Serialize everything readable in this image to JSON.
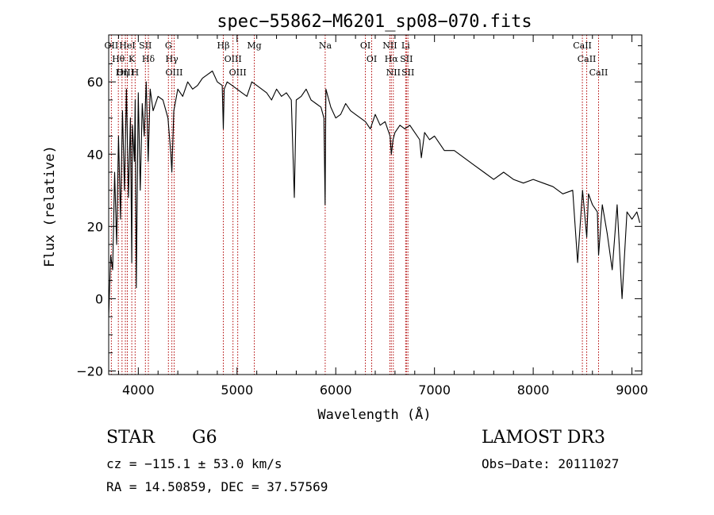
{
  "chart_data": {
    "type": "line",
    "title": "spec−55862−M6201_sp08−070.fits",
    "xlabel": "Wavelength (Å)",
    "ylabel": "Flux (relative)",
    "xlim": [
      3700,
      9100
    ],
    "ylim": [
      -21,
      73
    ],
    "xticks": [
      {
        "value": 4000,
        "label": "4000"
      },
      {
        "value": 5000,
        "label": "5000"
      },
      {
        "value": 6000,
        "label": "6000"
      },
      {
        "value": 7000,
        "label": "7000"
      },
      {
        "value": 8000,
        "label": "8000"
      },
      {
        "value": 9000,
        "label": "9000"
      }
    ],
    "yticks": [
      {
        "value": -20,
        "label": "−20"
      },
      {
        "value": 0,
        "label": "0"
      },
      {
        "value": 20,
        "label": "20"
      },
      {
        "value": 40,
        "label": "40"
      },
      {
        "value": 60,
        "label": "60"
      }
    ],
    "series": [
      {
        "name": "flux",
        "x": [
          3700,
          3720,
          3740,
          3760,
          3780,
          3800,
          3820,
          3840,
          3860,
          3880,
          3900,
          3920,
          3934,
          3940,
          3960,
          3968,
          3980,
          4000,
          4020,
          4040,
          4060,
          4080,
          4100,
          4120,
          4150,
          4200,
          4250,
          4300,
          4330,
          4340,
          4360,
          4400,
          4450,
          4500,
          4550,
          4600,
          4650,
          4700,
          4750,
          4800,
          4850,
          4861,
          4870,
          4900,
          4950,
          5000,
          5050,
          5100,
          5150,
          5200,
          5250,
          5300,
          5350,
          5400,
          5450,
          5500,
          5550,
          5580,
          5600,
          5650,
          5700,
          5750,
          5800,
          5850,
          5880,
          5892,
          5900,
          5950,
          6000,
          6050,
          6100,
          6150,
          6200,
          6250,
          6300,
          6350,
          6400,
          6450,
          6500,
          6550,
          6563,
          6580,
          6600,
          6650,
          6700,
          6750,
          6800,
          6850,
          6867,
          6900,
          6950,
          7000,
          7050,
          7100,
          7150,
          7200,
          7300,
          7400,
          7500,
          7600,
          7700,
          7800,
          7900,
          8000,
          8100,
          8200,
          8300,
          8400,
          8450,
          8500,
          8542,
          8560,
          8600,
          8650,
          8662,
          8700,
          8750,
          8800,
          8850,
          8900,
          8950,
          9000,
          9050,
          9080
        ],
        "y": [
          -5,
          12,
          8,
          35,
          15,
          45,
          22,
          52,
          30,
          58,
          28,
          50,
          10,
          48,
          38,
          55,
          3,
          57,
          30,
          54,
          45,
          60,
          38,
          58,
          52,
          56,
          55,
          50,
          40,
          35,
          52,
          58,
          56,
          60,
          58,
          59,
          61,
          62,
          63,
          60,
          59,
          47,
          58,
          60,
          59,
          58,
          57,
          56,
          60,
          59,
          58,
          57,
          55,
          58,
          56,
          57,
          55,
          28,
          55,
          56,
          58,
          55,
          54,
          53,
          50,
          26,
          58,
          53,
          50,
          51,
          54,
          52,
          51,
          50,
          49,
          47,
          51,
          48,
          49,
          45,
          40,
          44,
          46,
          48,
          47,
          48,
          46,
          44,
          39,
          46,
          44,
          45,
          43,
          41,
          41,
          41,
          39,
          37,
          35,
          33,
          35,
          33,
          32,
          33,
          32,
          31,
          29,
          30,
          10,
          30,
          17,
          29,
          26,
          24,
          12,
          26,
          18,
          8,
          26,
          0,
          24,
          22,
          24,
          21
        ]
      }
    ],
    "lines": [
      {
        "label": "OII",
        "wavelength": 3727
      },
      {
        "label": "Hθ",
        "wavelength": 3798
      },
      {
        "label": "OIII",
        "wavelength": 3869
      },
      {
        "label": "HeI",
        "wavelength": 3889
      },
      {
        "label": "K",
        "wavelength": 3934
      },
      {
        "label": "Hη",
        "wavelength": 3835
      },
      {
        "label": "H",
        "wavelength": 3968
      },
      {
        "label": "SII",
        "wavelength": 4072
      },
      {
        "label": "Hδ",
        "wavelength": 4102
      },
      {
        "label": "Hγ",
        "wavelength": 4340
      },
      {
        "label": "OIII",
        "wavelength": 4363
      },
      {
        "label": "G",
        "wavelength": 4305
      },
      {
        "label": "Hβ",
        "wavelength": 4861
      },
      {
        "label": "OIII",
        "wavelength": 4959
      },
      {
        "label": "OIII",
        "wavelength": 5007
      },
      {
        "label": "Mg",
        "wavelength": 5175
      },
      {
        "label": "Na",
        "wavelength": 5893
      },
      {
        "label": "OI",
        "wavelength": 6300
      },
      {
        "label": "OI",
        "wavelength": 6364
      },
      {
        "label": "NII",
        "wavelength": 6548
      },
      {
        "label": "Hα",
        "wavelength": 6563
      },
      {
        "label": "NII",
        "wavelength": 6583
      },
      {
        "label": "Li",
        "wavelength": 6708
      },
      {
        "label": "SII",
        "wavelength": 6716
      },
      {
        "label": "SII",
        "wavelength": 6731
      },
      {
        "label": "CaII",
        "wavelength": 8498
      },
      {
        "label": "CaII",
        "wavelength": 8542
      },
      {
        "label": "CaII",
        "wavelength": 8662
      }
    ]
  },
  "info": {
    "object_class": "STAR",
    "subclass": "G6",
    "redshift_text": "cz = −115.1 ± 53.0 km/s",
    "coords_text": "RA =  14.50859, DEC =  37.57569",
    "survey": "LAMOST DR3",
    "obs_date": "Obs−Date: 20111027"
  }
}
